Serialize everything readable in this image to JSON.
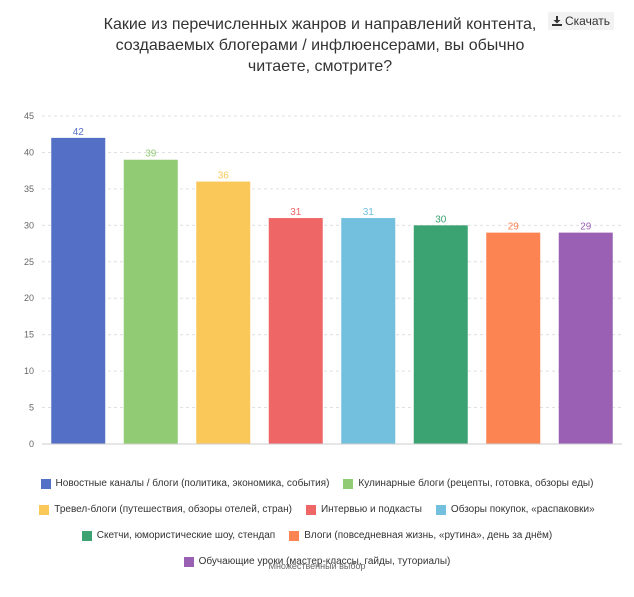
{
  "title": "Какие из перечисленных жанров и направлений контента, создаваемых блогерами / инфлюенсерами, вы обычно читаете, смотрите?",
  "download": {
    "label": "Скачать",
    "icon": "download-icon"
  },
  "footnote": "Множественный выбор",
  "chart_data": {
    "type": "bar",
    "categories": [
      "Новостные каналы / блоги (политика, экономика, события)",
      "Кулинарные блоги (рецепты, готовка, обзоры еды)",
      "Тревел-блоги (путешествия, обзоры отелей, стран)",
      "Интервью и подкасты",
      "Обзоры покупок, «распаковки»",
      "Скетчи, юмористические шоу, стендап",
      "Влоги (повседневная жизнь, «рутина», день за днём)",
      "Обучающие уроки (мастер-классы, гайды, туториалы)"
    ],
    "values": [
      42,
      39,
      36,
      31,
      31,
      30,
      29,
      29
    ],
    "colors": [
      "#5470c6",
      "#91cc75",
      "#fac858",
      "#ee6666",
      "#73c0de",
      "#3ba272",
      "#fc8452",
      "#9a60b4"
    ],
    "ylim": [
      0,
      45
    ],
    "yticks": [
      0,
      5,
      10,
      15,
      20,
      25,
      30,
      35,
      40,
      45
    ],
    "grid": true,
    "legend": "bottom"
  }
}
